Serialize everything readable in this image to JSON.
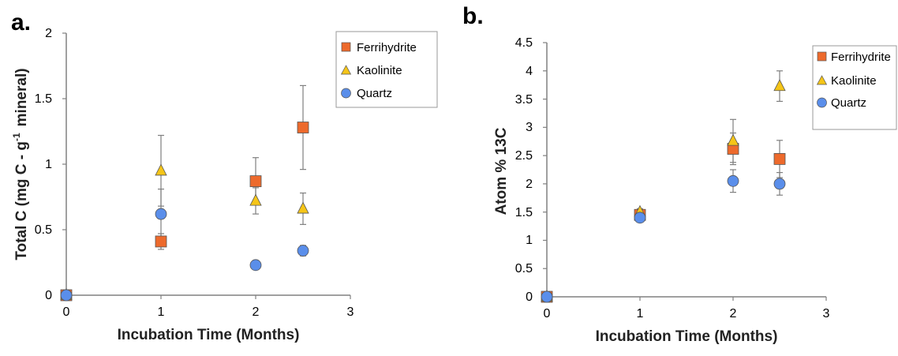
{
  "colors": {
    "ferrihydrite": "#ED6A2C",
    "kaolinite": "#F5C518",
    "quartz": "#5A8EEA",
    "axis": "#808080",
    "errorbar": "#7f7f7f",
    "marker_edge": "#555555"
  },
  "chart_data": [
    {
      "type": "scatter",
      "panel_label": "a.",
      "xlabel": "Incubation Time (Months)",
      "ylabel_main": "Total C (mg C - g",
      "ylabel_sup": "-1",
      "ylabel_tail": "mineral)",
      "xlim": [
        0,
        3
      ],
      "ylim": [
        0,
        2
      ],
      "xticks": [
        "0",
        "1",
        "2",
        "3"
      ],
      "yticks": [
        "0",
        "0.5",
        "1",
        "1.5",
        "2"
      ],
      "grid": false,
      "legend_position": "top-right",
      "series": [
        {
          "name": "Ferrihydrite",
          "marker": "square",
          "color_key": "ferrihydrite",
          "points": [
            {
              "x": 0,
              "y": 0,
              "err": 0
            },
            {
              "x": 1,
              "y": 0.41,
              "err": 0.06
            },
            {
              "x": 2,
              "y": 0.87,
              "err": 0.18
            },
            {
              "x": 2.5,
              "y": 1.28,
              "err": 0.32
            }
          ]
        },
        {
          "name": "Kaolinite",
          "marker": "triangle",
          "color_key": "kaolinite",
          "points": [
            {
              "x": 0,
              "y": 0,
              "err": 0
            },
            {
              "x": 1,
              "y": 0.95,
              "err": 0.27
            },
            {
              "x": 2,
              "y": 0.72,
              "err": 0.1
            },
            {
              "x": 2.5,
              "y": 0.66,
              "err": 0.12
            }
          ]
        },
        {
          "name": "Quartz",
          "marker": "circle",
          "color_key": "quartz",
          "points": [
            {
              "x": 0,
              "y": 0,
              "err": 0
            },
            {
              "x": 1,
              "y": 0.62,
              "err": 0.19
            },
            {
              "x": 2,
              "y": 0.23,
              "err": 0
            },
            {
              "x": 2.5,
              "y": 0.34,
              "err": 0.04
            }
          ]
        }
      ]
    },
    {
      "type": "scatter",
      "panel_label": "b.",
      "xlabel": "Incubation Time (Months)",
      "ylabel": "Atom % 13C",
      "xlim": [
        0,
        3
      ],
      "ylim": [
        0,
        4.5
      ],
      "xticks": [
        "0",
        "1",
        "2",
        "3"
      ],
      "yticks": [
        "0",
        "0.5",
        "1",
        "1.5",
        "2",
        "2.5",
        "3",
        "3.5",
        "4",
        "4.5"
      ],
      "grid": false,
      "legend_position": "top-right",
      "series": [
        {
          "name": "Ferrihydrite",
          "marker": "square",
          "color_key": "ferrihydrite",
          "points": [
            {
              "x": 0,
              "y": 0,
              "err": 0
            },
            {
              "x": 1,
              "y": 1.45,
              "err": 0.05
            },
            {
              "x": 2,
              "y": 2.62,
              "err": 0.28
            },
            {
              "x": 2.5,
              "y": 2.44,
              "err": 0.33
            }
          ]
        },
        {
          "name": "Kaolinite",
          "marker": "triangle",
          "color_key": "kaolinite",
          "points": [
            {
              "x": 0,
              "y": 0,
              "err": 0
            },
            {
              "x": 1,
              "y": 1.5,
              "err": 0.06
            },
            {
              "x": 2,
              "y": 2.76,
              "err": 0.38
            },
            {
              "x": 2.5,
              "y": 3.73,
              "err": 0.27
            }
          ]
        },
        {
          "name": "Quartz",
          "marker": "circle",
          "color_key": "quartz",
          "points": [
            {
              "x": 0,
              "y": 0,
              "err": 0
            },
            {
              "x": 1,
              "y": 1.4,
              "err": 0.05
            },
            {
              "x": 2,
              "y": 2.05,
              "err": 0.2
            },
            {
              "x": 2.5,
              "y": 2.0,
              "err": 0.2
            }
          ]
        }
      ]
    }
  ]
}
